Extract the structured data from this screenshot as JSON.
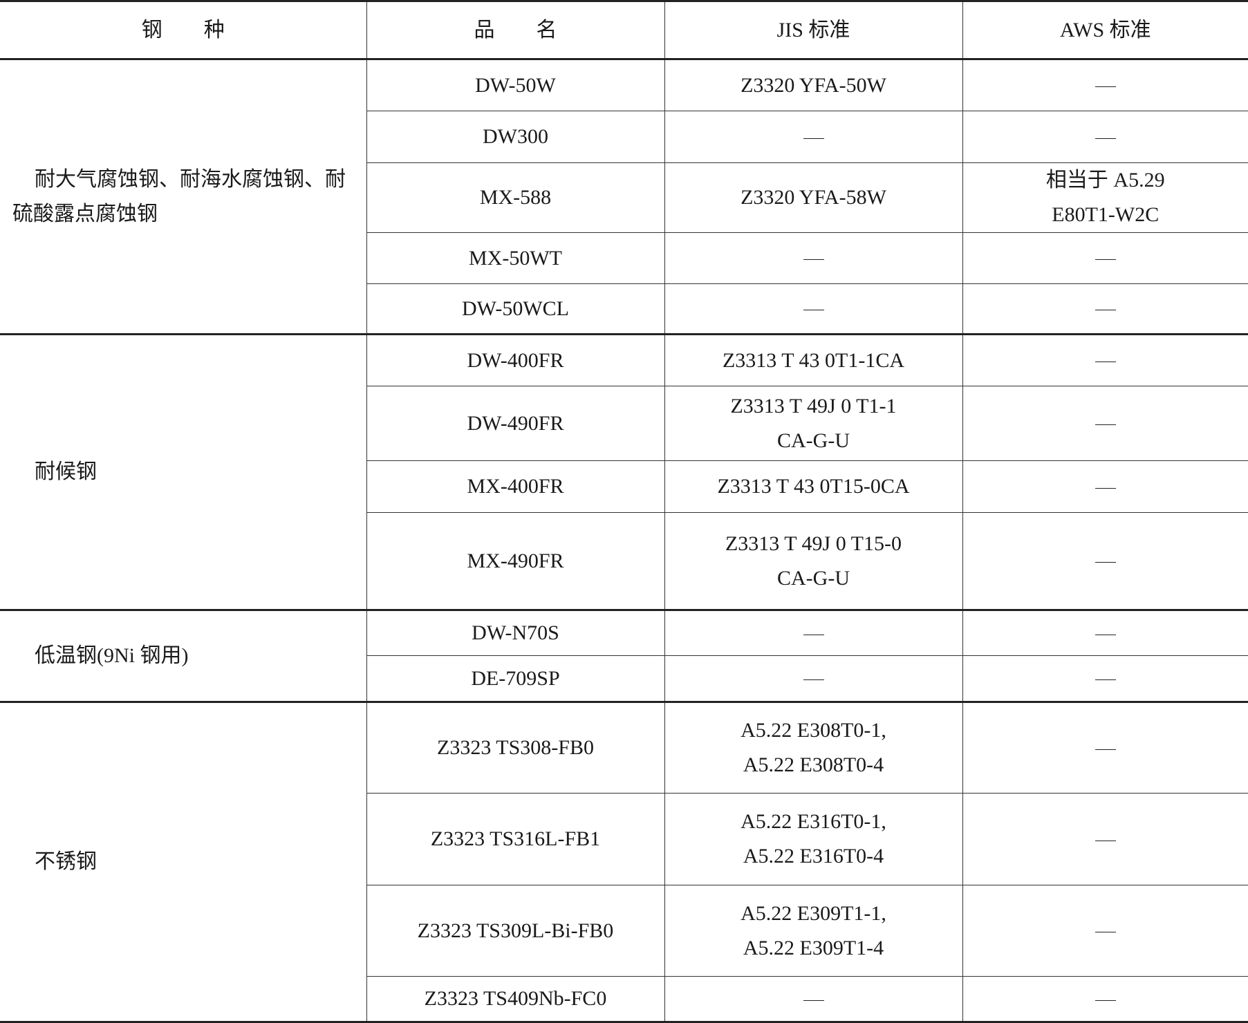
{
  "headers": [
    "钢　　种",
    "品　　名",
    "JIS 标准",
    "AWS 标准"
  ],
  "groups": [
    {
      "category": "耐大气腐蚀钢、耐海水腐蚀钢、耐硫酸露点腐蚀钢",
      "rows": [
        {
          "name": "DW-50W",
          "jis": "Z3320 YFA-50W",
          "aws": "—"
        },
        {
          "name": "DW300",
          "jis": "—",
          "aws": "—"
        },
        {
          "name": "MX-588",
          "jis": "Z3320 YFA-58W",
          "aws": "相当于 A5.29 E80T1-W2C"
        },
        {
          "name": "MX-50WT",
          "jis": "—",
          "aws": "—"
        },
        {
          "name": "DW-50WCL",
          "jis": "—",
          "aws": "—"
        }
      ]
    },
    {
      "category": "耐候钢",
      "rows": [
        {
          "name": "DW-400FR",
          "jis": "Z3313 T 43 0T1-1CA",
          "aws": "—"
        },
        {
          "name": "DW-490FR",
          "jis": "Z3313 T 49J 0 T1-1 CA-G-U",
          "aws": "—"
        },
        {
          "name": "MX-400FR",
          "jis": "Z3313 T 43 0T15-0CA",
          "aws": "—"
        },
        {
          "name": "MX-490FR",
          "jis": "Z3313 T 49J 0 T15-0 CA-G-U",
          "aws": "—"
        }
      ]
    },
    {
      "category": "低温钢(9Ni 钢用)",
      "rows": [
        {
          "name": "DW-N70S",
          "jis": "—",
          "aws": "—"
        },
        {
          "name": "DE-709SP",
          "jis": "—",
          "aws": "—"
        }
      ]
    },
    {
      "category": "不锈钢",
      "rows": [
        {
          "name": "Z3323 TS308-FB0",
          "jis": "A5.22 E308T0-1, A5.22 E308T0-4",
          "aws": "—"
        },
        {
          "name": "Z3323 TS316L-FB1",
          "jis": "A5.22 E316T0-1, A5.22 E316T0-4",
          "aws": "—"
        },
        {
          "name": "Z3323 TS309L-Bi-FB0",
          "jis": "A5.22 E309T1-1, A5.22 E309T1-4",
          "aws": "—"
        },
        {
          "name": "Z3323 TS409Nb-FC0",
          "jis": "—",
          "aws": "—"
        }
      ]
    }
  ]
}
